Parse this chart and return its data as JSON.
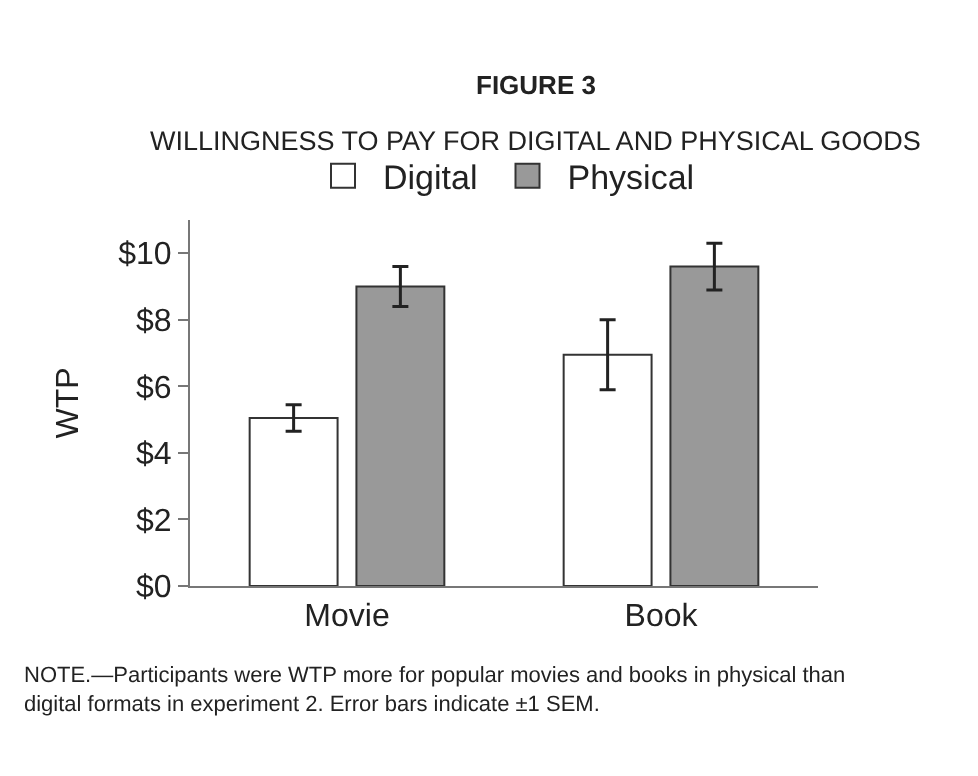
{
  "chart_data": {
    "type": "bar",
    "title": "FIGURE 3",
    "subtitle": "WILLINGNESS TO PAY FOR DIGITAL AND PHYSICAL GOODS",
    "ylabel": "WTP",
    "categories": [
      "Movie",
      "Book"
    ],
    "series": [
      {
        "name": "Digital",
        "color": "#ffffff",
        "values": [
          5.05,
          6.95
        ],
        "errors": [
          0.4,
          1.05
        ]
      },
      {
        "name": "Physical",
        "color": "#999999",
        "values": [
          9.0,
          9.6
        ],
        "errors": [
          0.6,
          0.7
        ]
      }
    ],
    "ylim": [
      0,
      11
    ],
    "yticks": [
      {
        "value": 0,
        "label": "$0"
      },
      {
        "value": 2,
        "label": "$2"
      },
      {
        "value": 4,
        "label": "$4"
      },
      {
        "value": 6,
        "label": "$6"
      },
      {
        "value": 8,
        "label": "$8"
      },
      {
        "value": 10,
        "label": "$10"
      }
    ],
    "grid": false,
    "legend": "top",
    "annotations": [
      "NOTE.—Participants were WTP more for popular movies and books in physical than digital formats in experiment 2. Error bars indicate ±1 SEM."
    ]
  }
}
